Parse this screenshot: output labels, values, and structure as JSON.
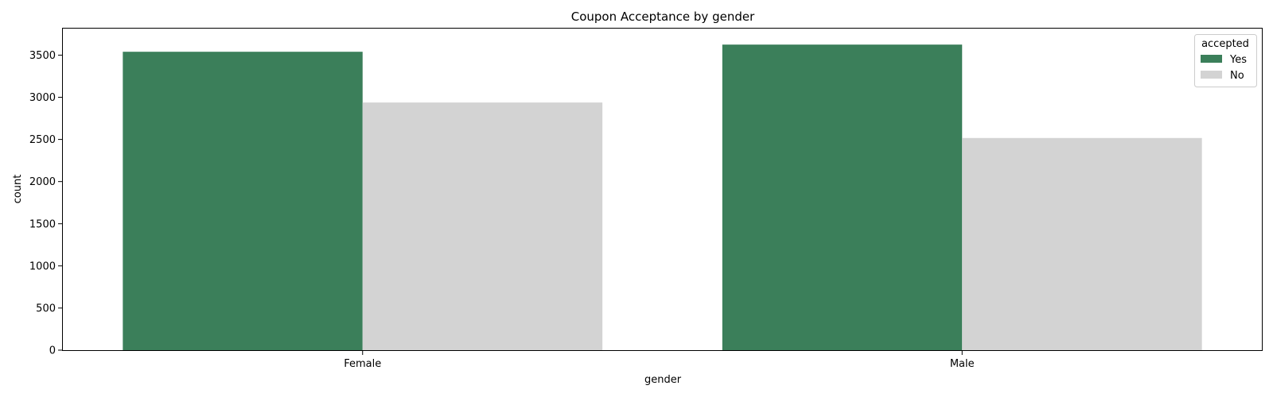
{
  "chart_data": {
    "type": "bar",
    "title": "Coupon Acceptance by gender",
    "xlabel": "gender",
    "ylabel": "count",
    "categories": [
      "Female",
      "Male"
    ],
    "series": [
      {
        "name": "Yes",
        "values": [
          3540,
          3625
        ],
        "color": "#3b7f5a"
      },
      {
        "name": "No",
        "values": [
          2938,
          2517
        ],
        "color": "#d3d3d3"
      }
    ],
    "ylim": [
      0,
      3815
    ],
    "yticks": [
      0,
      500,
      1000,
      1500,
      2000,
      2500,
      3000,
      3500
    ],
    "legend": {
      "title": "accepted",
      "placement": "top-right"
    },
    "grid": false
  }
}
